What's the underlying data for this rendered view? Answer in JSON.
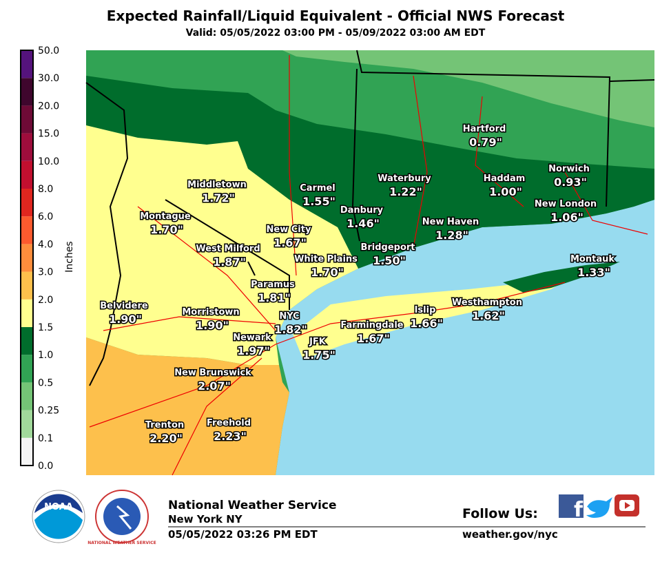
{
  "header": {
    "title": "Expected Rainfall/Liquid Equivalent - Official NWS Forecast",
    "subtitle": "Valid: 05/05/2022 03:00 PM - 05/09/2022 03:00 AM EDT"
  },
  "legend": {
    "label": "Inches",
    "ticks": [
      "0.0",
      "0.1",
      "0.25",
      "0.5",
      "1.0",
      "1.5",
      "2.0",
      "3.0",
      "4.0",
      "6.0",
      "8.0",
      "10.0",
      "15.0",
      "20.0",
      "30.0",
      "50.0"
    ],
    "colors": [
      "#f4f4f4",
      "#a1d99b",
      "#74c476",
      "#31a354",
      "#006d2c",
      "#ffff8f",
      "#fdc04c",
      "#fd8d3c",
      "#fc5a2e",
      "#e0261f",
      "#c20f2f",
      "#9e0d3c",
      "#6e0a36",
      "#3f062d",
      "#55137c",
      "#ffdcf6"
    ]
  },
  "cities": [
    {
      "name": "Hartford",
      "value": "0.79\""
    },
    {
      "name": "Norwich",
      "value": "0.93\""
    },
    {
      "name": "Waterbury",
      "value": "1.22\""
    },
    {
      "name": "Haddam",
      "value": "1.00\""
    },
    {
      "name": "Middletown",
      "value": "1.72\""
    },
    {
      "name": "Carmel",
      "value": "1.55\""
    },
    {
      "name": "Danbury",
      "value": "1.46\""
    },
    {
      "name": "New London",
      "value": "1.06\""
    },
    {
      "name": "Montague",
      "value": "1.70\""
    },
    {
      "name": "New Haven",
      "value": "1.28\""
    },
    {
      "name": "New City",
      "value": "1.67\""
    },
    {
      "name": "West Milford",
      "value": "1.87\""
    },
    {
      "name": "Bridgeport",
      "value": "1.50\""
    },
    {
      "name": "White Plains",
      "value": "1.70\""
    },
    {
      "name": "Montauk",
      "value": "1.33\""
    },
    {
      "name": "Paramus",
      "value": "1.81\""
    },
    {
      "name": "Belvidere",
      "value": "1.90\""
    },
    {
      "name": "Islip",
      "value": "1.66\""
    },
    {
      "name": "Westhampton",
      "value": "1.62\""
    },
    {
      "name": "Morristown",
      "value": "1.90\""
    },
    {
      "name": "NYC",
      "value": "1.82\""
    },
    {
      "name": "Farmingdale",
      "value": "1.67\""
    },
    {
      "name": "Newark",
      "value": "1.97\""
    },
    {
      "name": "JFK",
      "value": "1.75\""
    },
    {
      "name": "New Brunswick",
      "value": "2.07\""
    },
    {
      "name": "Trenton",
      "value": "2.20\""
    },
    {
      "name": "Freehold",
      "value": "2.23\""
    }
  ],
  "footer": {
    "logo": "NOAA",
    "seal": "NATIONAL WEATHER SERVICE",
    "org": "National Weather Service",
    "office": "New York NY",
    "issued": "05/05/2022 03:26 PM EDT",
    "follow": "Follow Us:",
    "url": "weather.gov/nyc"
  }
}
